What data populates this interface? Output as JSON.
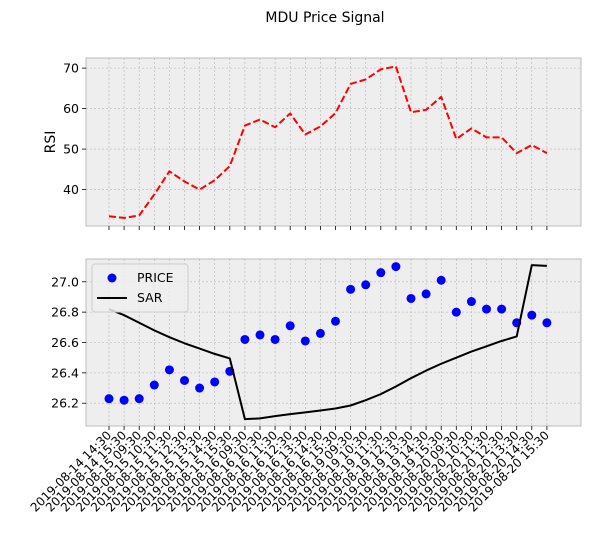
{
  "title": "MDU Price Signal",
  "chart_data": [
    {
      "type": "line",
      "ylabel": "RSI",
      "ylim": [
        31,
        72.5
      ],
      "yticks": [
        40,
        50,
        60,
        70
      ],
      "grid": true,
      "series": [
        {
          "values": [
            33.4,
            33.0,
            33.6,
            38.8,
            44.5,
            42.0,
            40.0,
            42.3,
            45.8,
            55.8,
            57.3,
            55.4,
            58.8,
            53.6,
            55.6,
            58.9,
            66.1,
            67.2,
            69.7,
            70.4,
            59.1,
            59.7,
            62.9,
            52.5,
            55.1,
            52.9,
            52.9,
            49.0,
            51.0,
            49.0
          ],
          "color": "#ff0000",
          "style": "dashed"
        }
      ]
    },
    {
      "type": "line",
      "ylim": [
        26.05,
        27.15
      ],
      "yticks": [
        26.2,
        26.4,
        26.6,
        26.8,
        27.0
      ],
      "grid": true,
      "legend": "top-left",
      "categories": [
        "2019-08-14 14:30",
        "2019-08-14 15:30",
        "2019-08-15 09:30",
        "2019-08-15 10:30",
        "2019-08-15 11:30",
        "2019-08-15 12:30",
        "2019-08-15 13:30",
        "2019-08-15 14:30",
        "2019-08-15 15:30",
        "2019-08-16 09:30",
        "2019-08-16 10:30",
        "2019-08-16 11:30",
        "2019-08-16 12:30",
        "2019-08-16 13:30",
        "2019-08-16 14:30",
        "2019-08-16 15:30",
        "2019-08-19 09:30",
        "2019-08-19 10:30",
        "2019-08-19 11:30",
        "2019-08-19 12:30",
        "2019-08-19 13:30",
        "2019-08-19 14:30",
        "2019-08-19 15:30",
        "2019-08-20 09:30",
        "2019-08-20 10:30",
        "2019-08-20 11:30",
        "2019-08-20 12:30",
        "2019-08-20 13:30",
        "2019-08-20 14:30",
        "2019-08-20 15:30"
      ],
      "series": [
        {
          "name": "PRICE",
          "kind": "scatter",
          "color": "#0000ff",
          "values": [
            26.23,
            26.22,
            26.23,
            26.32,
            26.42,
            26.35,
            26.3,
            26.34,
            26.41,
            26.62,
            26.65,
            26.62,
            26.71,
            26.61,
            26.66,
            26.74,
            26.95,
            26.98,
            27.06,
            27.1,
            26.89,
            26.92,
            27.01,
            26.8,
            26.87,
            26.82,
            26.82,
            26.73,
            26.78,
            26.73
          ]
        },
        {
          "name": "SAR",
          "kind": "line",
          "color": "#000000",
          "values": [
            26.82,
            26.78,
            26.73,
            26.68,
            26.635,
            26.595,
            26.56,
            26.525,
            26.495,
            26.095,
            26.1,
            26.115,
            26.128,
            26.14,
            26.152,
            26.165,
            26.185,
            26.22,
            26.26,
            26.31,
            26.365,
            26.415,
            26.46,
            26.5,
            26.54,
            26.575,
            26.61,
            26.64,
            27.11,
            27.105
          ]
        }
      ]
    }
  ]
}
